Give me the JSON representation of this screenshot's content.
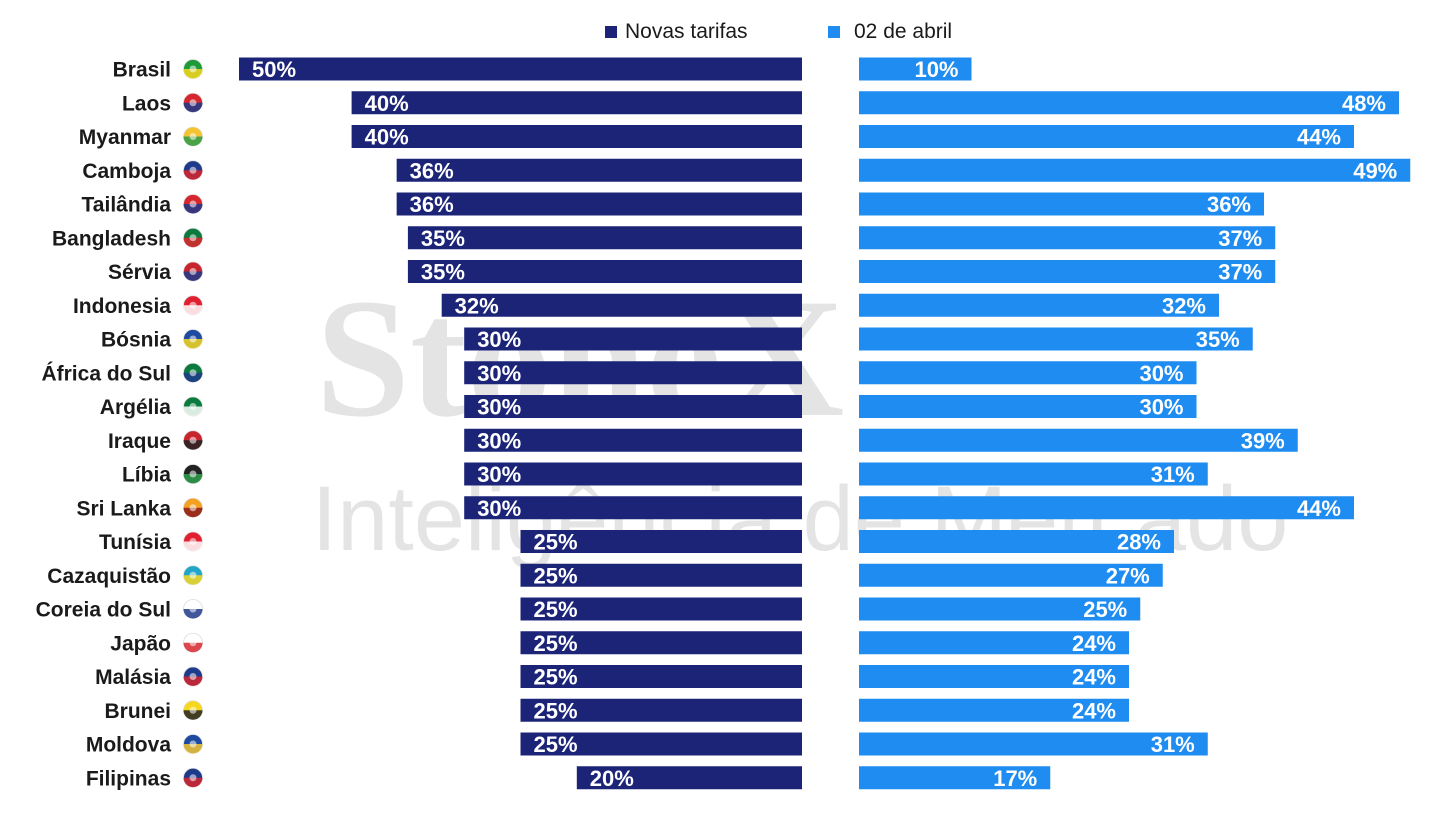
{
  "legend": {
    "new_label": "Novas tarifas",
    "old_label": "02 de abril"
  },
  "watermark": {
    "brand": "StoneX",
    "tagline": "Inteligência de Mercado"
  },
  "colors": {
    "new": "#1c2478",
    "old": "#1e8cf0",
    "label_text": "#1a1a1a",
    "value_text": "#ffffff"
  },
  "chart_data": {
    "type": "bar",
    "orientation": "horizontal",
    "categories": [
      "Brasil",
      "Laos",
      "Myanmar",
      "Camboja",
      "Tailândia",
      "Bangladesh",
      "Sérvia",
      "Indonesia",
      "Bósnia",
      "África do Sul",
      "Argélia",
      "Iraque",
      "Líbia",
      "Sri Lanka",
      "Tunísia",
      "Cazaquistão",
      "Coreia do Sul",
      "Japão",
      "Malásia",
      "Brunei",
      "Moldova",
      "Filipinas"
    ],
    "flag_icons": [
      "brazil-flag-icon",
      "laos-flag-icon",
      "myanmar-flag-icon",
      "cambodia-flag-icon",
      "thailand-flag-icon",
      "bangladesh-flag-icon",
      "serbia-flag-icon",
      "indonesia-flag-icon",
      "bosnia-flag-icon",
      "south-africa-flag-icon",
      "algeria-flag-icon",
      "iraq-flag-icon",
      "libya-flag-icon",
      "sri-lanka-flag-icon",
      "tunisia-flag-icon",
      "kazakhstan-flag-icon",
      "south-korea-flag-icon",
      "japan-flag-icon",
      "malaysia-flag-icon",
      "brunei-flag-icon",
      "moldova-flag-icon",
      "philippines-flag-icon"
    ],
    "series": [
      {
        "name": "Novas tarifas",
        "values": [
          50,
          40,
          40,
          36,
          36,
          35,
          35,
          32,
          30,
          30,
          30,
          30,
          30,
          30,
          25,
          25,
          25,
          25,
          25,
          25,
          25,
          20
        ]
      },
      {
        "name": "02 de abril",
        "values": [
          10,
          48,
          44,
          49,
          36,
          37,
          37,
          32,
          35,
          30,
          30,
          39,
          31,
          44,
          28,
          27,
          25,
          24,
          24,
          24,
          31,
          17
        ]
      }
    ],
    "value_suffix": "%",
    "grid": false,
    "legend_position": "top-center"
  }
}
